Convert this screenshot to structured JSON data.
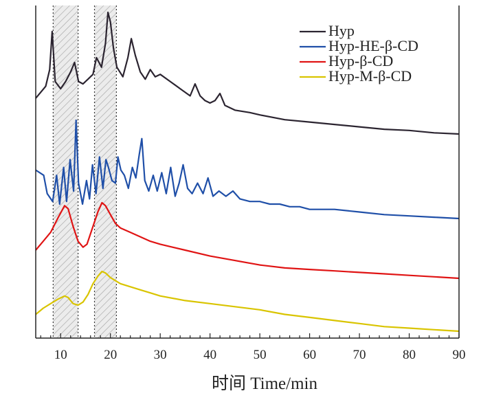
{
  "chart_data": {
    "type": "line",
    "title": "",
    "xlabel": "时间 Time/min",
    "ylabel": "",
    "xlim": [
      5,
      90
    ],
    "xticks": [
      10,
      20,
      30,
      40,
      50,
      60,
      70,
      80,
      90
    ],
    "grid": false,
    "legend": {
      "placement": "top-right"
    },
    "shaded_regions": [
      [
        8.5,
        13.5
      ],
      [
        16.8,
        21.2
      ]
    ],
    "series": [
      {
        "name": "Hyp",
        "color": "#2b2430",
        "x": [
          5,
          7,
          7.8,
          8.3,
          8.9,
          10,
          11,
          12,
          12.8,
          13.6,
          14.5,
          15.5,
          16.5,
          17.2,
          18.2,
          19,
          19.5,
          20,
          20.6,
          21.3,
          22.5,
          23.5,
          24.2,
          25,
          26,
          27,
          28,
          29,
          30,
          32,
          34,
          36,
          37,
          38,
          39,
          40,
          41,
          42,
          43,
          45,
          48,
          50,
          55,
          60,
          65,
          70,
          75,
          80,
          85,
          90
        ],
        "y": [
          0.63,
          0.68,
          0.75,
          0.91,
          0.7,
          0.67,
          0.7,
          0.74,
          0.78,
          0.7,
          0.69,
          0.71,
          0.73,
          0.8,
          0.76,
          0.86,
          0.99,
          0.95,
          0.84,
          0.76,
          0.72,
          0.8,
          0.88,
          0.81,
          0.74,
          0.71,
          0.75,
          0.72,
          0.73,
          0.7,
          0.67,
          0.64,
          0.69,
          0.64,
          0.62,
          0.61,
          0.62,
          0.65,
          0.6,
          0.58,
          0.57,
          0.56,
          0.54,
          0.53,
          0.52,
          0.51,
          0.5,
          0.495,
          0.485,
          0.48
        ]
      },
      {
        "name": "Hyp-HE-β-CD",
        "color": "#1f4fa8",
        "x": [
          5,
          6.6,
          7.3,
          8.4,
          9.2,
          9.8,
          10.6,
          11.2,
          11.9,
          12.6,
          13.1,
          13.6,
          14.4,
          15.2,
          15.8,
          16.4,
          17.1,
          17.8,
          18.5,
          19.1,
          19.6,
          20.3,
          21.0,
          21.5,
          22.1,
          22.8,
          23.6,
          24.4,
          25.1,
          25.8,
          26.3,
          26.9,
          27.7,
          28.6,
          29.4,
          30.3,
          31.2,
          32.1,
          33.0,
          33.8,
          34.6,
          35.5,
          36.4,
          37.5,
          38.6,
          39.6,
          40.6,
          41.8,
          43.2,
          44.6,
          46,
          48,
          50,
          52,
          54,
          56,
          58,
          60,
          65,
          70,
          75,
          80,
          85,
          90
        ],
        "y": [
          0.46,
          0.44,
          0.37,
          0.34,
          0.44,
          0.33,
          0.47,
          0.34,
          0.5,
          0.38,
          0.65,
          0.41,
          0.33,
          0.42,
          0.35,
          0.48,
          0.37,
          0.51,
          0.39,
          0.5,
          0.47,
          0.42,
          0.41,
          0.51,
          0.46,
          0.44,
          0.39,
          0.47,
          0.43,
          0.52,
          0.58,
          0.42,
          0.38,
          0.44,
          0.38,
          0.45,
          0.37,
          0.47,
          0.36,
          0.41,
          0.48,
          0.39,
          0.37,
          0.41,
          0.37,
          0.43,
          0.36,
          0.38,
          0.36,
          0.38,
          0.35,
          0.34,
          0.34,
          0.33,
          0.33,
          0.32,
          0.32,
          0.31,
          0.31,
          0.3,
          0.29,
          0.285,
          0.28,
          0.275
        ]
      },
      {
        "name": "Hyp-β-CD",
        "color": "#e01414",
        "x": [
          5,
          6.5,
          8,
          9.5,
          10.8,
          11.5,
          12.5,
          13.5,
          14.5,
          15.3,
          16.5,
          17.5,
          18.3,
          19,
          20,
          21,
          22,
          24,
          26,
          28,
          30,
          35,
          40,
          45,
          50,
          55,
          60,
          65,
          70,
          75,
          80,
          85,
          90
        ],
        "y": [
          0.19,
          0.22,
          0.25,
          0.3,
          0.34,
          0.33,
          0.27,
          0.22,
          0.2,
          0.21,
          0.27,
          0.32,
          0.35,
          0.34,
          0.31,
          0.28,
          0.265,
          0.25,
          0.235,
          0.22,
          0.21,
          0.19,
          0.17,
          0.155,
          0.14,
          0.13,
          0.125,
          0.12,
          0.115,
          0.11,
          0.105,
          0.1,
          0.095
        ]
      },
      {
        "name": "Hyp-M-β-CD",
        "color": "#d9c400",
        "x": [
          5,
          6.5,
          8,
          9.5,
          10.8,
          11.5,
          12.5,
          13.5,
          14.5,
          15.5,
          16.5,
          17.5,
          18.3,
          19,
          20,
          21,
          22,
          24,
          26,
          28,
          30,
          35,
          40,
          45,
          50,
          55,
          60,
          65,
          70,
          75,
          80,
          85,
          90
        ],
        "y": [
          0.0,
          0.02,
          0.035,
          0.05,
          0.06,
          0.055,
          0.035,
          0.03,
          0.04,
          0.065,
          0.1,
          0.125,
          0.14,
          0.135,
          0.12,
          0.11,
          0.1,
          0.09,
          0.08,
          0.07,
          0.06,
          0.045,
          0.035,
          0.025,
          0.015,
          0.0,
          -0.01,
          -0.02,
          -0.03,
          -0.04,
          -0.045,
          -0.05,
          -0.055
        ]
      }
    ]
  }
}
